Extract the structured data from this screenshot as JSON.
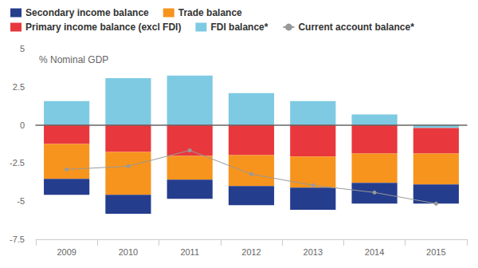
{
  "chart_data": {
    "type": "bar",
    "stacked": true,
    "y_label": "% Nominal GDP",
    "categories": [
      "2009",
      "2010",
      "2011",
      "2012",
      "2013",
      "2014",
      "2015"
    ],
    "series": [
      {
        "name": "Secondary income balance",
        "color": "#253d8d",
        "values": [
          -1.04,
          -1.25,
          -1.25,
          -1.25,
          -1.46,
          -1.36,
          -1.25
        ]
      },
      {
        "name": "Trade balance",
        "color": "#f7941d",
        "values": [
          -2.29,
          -2.81,
          -1.56,
          -2.03,
          -2.03,
          -1.92,
          -2.03
        ]
      },
      {
        "name": "Primary income balance (excl FDI)",
        "color": "#e8383d",
        "values": [
          -1.25,
          -1.77,
          -2.03,
          -1.98,
          -2.08,
          -1.88,
          -1.68
        ]
      },
      {
        "name": "FDI balance*",
        "color": "#7ecae3",
        "values": [
          1.56,
          3.07,
          3.23,
          2.08,
          1.56,
          0.68,
          -0.2
        ]
      },
      {
        "name": "Current account balance*",
        "type": "line",
        "color": "#999999",
        "marker": "circle",
        "values": [
          -2.92,
          -2.71,
          -1.67,
          -3.23,
          -3.96,
          -4.43,
          -5.16
        ]
      }
    ],
    "ylim": [
      -7.5,
      5
    ],
    "yticks": [
      -7.5,
      -5,
      -2.5,
      0,
      2.5,
      5
    ],
    "grid": false,
    "legend": "top"
  }
}
